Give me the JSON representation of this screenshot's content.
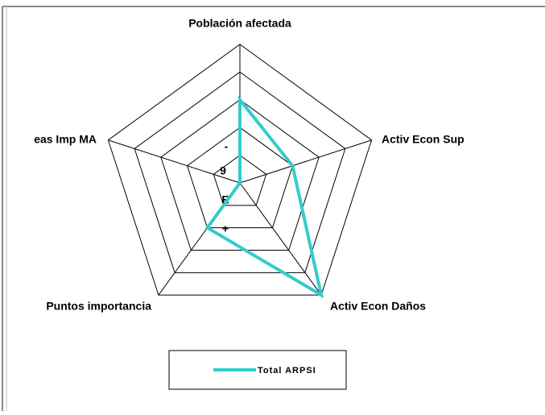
{
  "chart_data": {
    "type": "radar",
    "categories": [
      "Población afectada",
      "Activ Econ Sup",
      "Activ Econ Daños",
      "Puntos importancia",
      "eas Imp MA"
    ],
    "series": [
      {
        "name": "Total ARPSI",
        "color": "#33cccc",
        "values": [
          3,
          2,
          5,
          2,
          0
        ]
      }
    ],
    "rlim": [
      0,
      5
    ],
    "rticks": [
      0,
      1,
      2,
      3,
      4,
      5
    ],
    "axis_marks": [
      "-",
      "9",
      "E",
      "+"
    ],
    "grid": true,
    "legend": "bottom"
  }
}
